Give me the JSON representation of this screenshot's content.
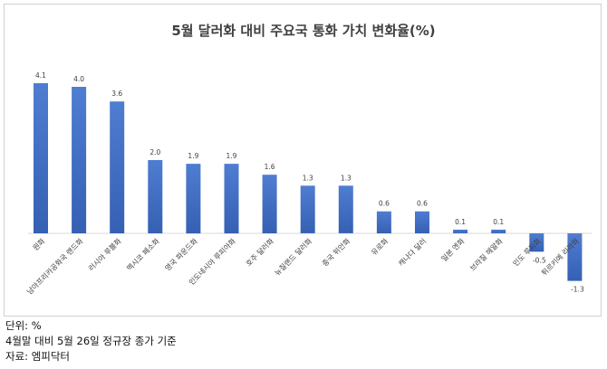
{
  "chart_data": {
    "type": "bar",
    "title": "5월 달러화 대비 주요국 통화 가치 변화율(%)",
    "categories": [
      "원화",
      "남아프리카공화국 랜드화",
      "러시아 루블화",
      "멕시코 페소화",
      "영국 파운드화",
      "인도네시아 루피아화",
      "호주 달러화",
      "뉴질랜드 달러화",
      "중국 위안화",
      "유로화",
      "캐나다 달러",
      "일본 엔화",
      "브라질 헤알화",
      "인도 루피화",
      "튀르키예 리라화"
    ],
    "values": [
      4.1,
      4.0,
      3.6,
      2.0,
      1.9,
      1.9,
      1.6,
      1.3,
      1.3,
      0.6,
      0.6,
      0.1,
      0.1,
      -0.5,
      -1.3
    ],
    "value_labels": [
      "4.1",
      "4.0",
      "3.6",
      "2.0",
      "1.9",
      "1.9",
      "1.6",
      "1.3",
      "1.3",
      "0.6",
      "0.6",
      "0.1",
      "0.1",
      "-0.5",
      "-1.3"
    ],
    "ylim": [
      -1.3,
      4.1
    ],
    "grid": false,
    "bar_color": "#4472C4",
    "xlabel": "",
    "ylabel": ""
  },
  "notes": {
    "unit": "단위: %",
    "basis": "4월말 대비 5월 26일 정규장 종가 기준",
    "source": "자료: 엠피닥터"
  }
}
